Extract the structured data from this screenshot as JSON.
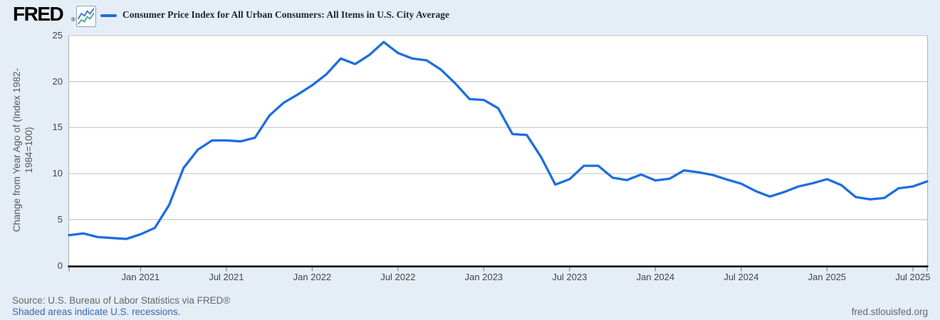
{
  "header": {
    "logo_text": "FRED",
    "registered_mark": "®",
    "logo_chart_icon": "zigzag-sparkline-icon",
    "series_title": "Consumer Price Index for All Urban Consumers: All Items in U.S. City Average"
  },
  "chart_data": {
    "type": "line",
    "title": "Consumer Price Index for All Urban Consumers: All Items in U.S. City Average",
    "ylabel_line1": "Change from Year Ago of (Index 1982-",
    "ylabel_line2": "1984=100)",
    "xlabel": "",
    "ylim": [
      0,
      25
    ],
    "y_ticks": [
      0,
      5,
      10,
      15,
      20,
      25
    ],
    "y_tick_labels": [
      "0",
      "5",
      "10",
      "15",
      "20",
      "25"
    ],
    "grid": "horizontal-only",
    "legend_position": "top-left",
    "x": [
      "Aug 2020",
      "Sep 2020",
      "Oct 2020",
      "Nov 2020",
      "Dec 2020",
      "Jan 2021",
      "Feb 2021",
      "Mar 2021",
      "Apr 2021",
      "May 2021",
      "Jun 2021",
      "Jul 2021",
      "Aug 2021",
      "Sep 2021",
      "Oct 2021",
      "Nov 2021",
      "Dec 2021",
      "Jan 2022",
      "Feb 2022",
      "Mar 2022",
      "Apr 2022",
      "May 2022",
      "Jun 2022",
      "Jul 2022",
      "Aug 2022",
      "Sep 2022",
      "Oct 2022",
      "Nov 2022",
      "Dec 2022",
      "Jan 2023",
      "Feb 2023",
      "Mar 2023",
      "Apr 2023",
      "May 2023",
      "Jun 2023",
      "Jul 2023",
      "Aug 2023",
      "Sep 2023",
      "Oct 2023",
      "Nov 2023",
      "Dec 2023",
      "Jan 2024",
      "Feb 2024",
      "Mar 2024",
      "Apr 2024",
      "May 2024",
      "Jun 2024",
      "Jul 2024",
      "Aug 2024",
      "Sep 2024",
      "Oct 2024",
      "Nov 2024",
      "Dec 2024",
      "Jan 2025",
      "Feb 2025",
      "Mar 2025",
      "Apr 2025",
      "May 2025",
      "Jun 2025",
      "Jul 2025",
      "Aug 2025"
    ],
    "values": [
      3.3,
      3.5,
      3.1,
      3.0,
      2.9,
      3.4,
      4.1,
      6.6,
      10.6,
      12.6,
      13.6,
      13.6,
      13.5,
      13.9,
      16.3,
      17.7,
      18.6,
      19.6,
      20.8,
      22.5,
      21.9,
      22.9,
      24.3,
      23.1,
      22.5,
      22.3,
      21.3,
      19.8,
      18.1,
      18.0,
      17.1,
      14.3,
      14.2,
      11.8,
      8.8,
      9.4,
      10.85,
      10.85,
      9.55,
      9.3,
      9.9,
      9.25,
      9.45,
      10.35,
      10.15,
      9.85,
      9.35,
      8.9,
      8.1,
      7.5,
      8.0,
      8.6,
      8.95,
      9.4,
      8.75,
      7.45,
      7.2,
      7.35,
      8.4,
      8.6,
      9.15
    ],
    "x_tick_indices": [
      5,
      11,
      17,
      23,
      29,
      35,
      41,
      47,
      53,
      59
    ],
    "x_tick_labels": [
      "Jan 2021",
      "Jul 2021",
      "Jan 2022",
      "Jul 2022",
      "Jan 2023",
      "Jul 2023",
      "Jan 2024",
      "Jul 2024",
      "Jan 2025",
      "Jul 2025"
    ],
    "line_color": "#1d6ee0"
  },
  "colors": {
    "page_background": "#e5edf6",
    "plot_background": "#ffffff",
    "gridline": "#cccccc",
    "plot_border": "#b3b9c0",
    "x_axis": "#000000",
    "line": "#1d6ee0",
    "icon_line_blue": "#3a6fd8",
    "icon_line_teal": "#45a98d",
    "link_blue": "#3a68b0",
    "text_gray": "#676767"
  },
  "footer": {
    "source_text": "Source: U.S. Bureau of Labor Statistics via FRED®",
    "recession_note": "Shaded areas indicate U.S. recessions.",
    "site_link": "fred.stlouisfed.org"
  }
}
